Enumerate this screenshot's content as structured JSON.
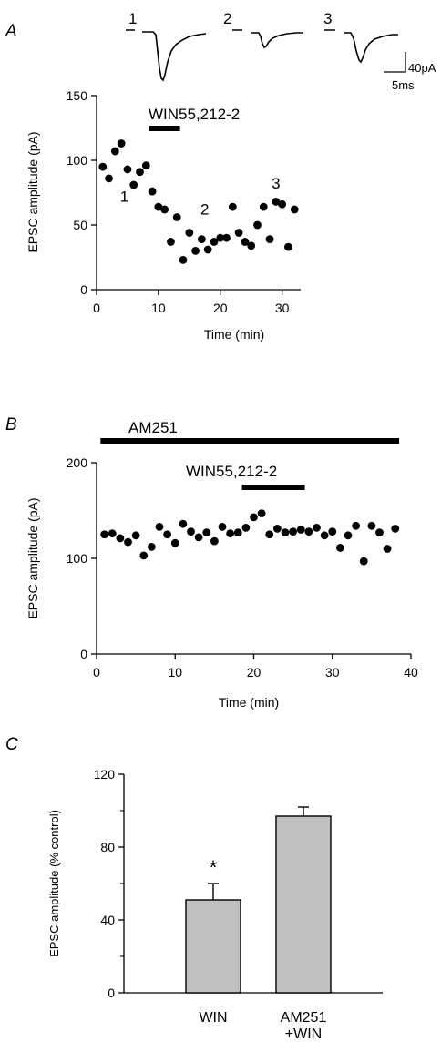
{
  "panels": {
    "a": {
      "label": "A"
    },
    "b": {
      "label": "B"
    },
    "c": {
      "label": "C"
    }
  },
  "traces": {
    "labels": [
      "1",
      "2",
      "3"
    ],
    "scale_y": "40pA",
    "scale_x": "5ms"
  },
  "chart_data": [
    {
      "type": "scatter",
      "panel": "A",
      "xlabel": "Time (min)",
      "ylabel": "EPSC amplitude (pA)",
      "xlim": [
        0,
        33
      ],
      "ylim": [
        0,
        150
      ],
      "xticks": [
        0,
        10,
        20,
        30
      ],
      "yticks": [
        0,
        50,
        100,
        150
      ],
      "drug_bars": [
        {
          "label": "WIN55,212-2",
          "start": 8.5,
          "end": 13.5
        }
      ],
      "annotations": [
        {
          "text": "1",
          "x": 4.5,
          "y": 68
        },
        {
          "text": "2",
          "x": 17.5,
          "y": 58
        },
        {
          "text": "3",
          "x": 29,
          "y": 78
        }
      ],
      "x": [
        1,
        2,
        3,
        4,
        5,
        6,
        7,
        8,
        9,
        10,
        11,
        12,
        13,
        14,
        15,
        16,
        17,
        18,
        19,
        20,
        21,
        22,
        23,
        24,
        25,
        26,
        27,
        28,
        29,
        30,
        31,
        32
      ],
      "values": [
        95,
        86,
        107,
        113,
        93,
        81,
        91,
        96,
        76,
        64,
        62,
        37,
        56,
        23,
        44,
        30,
        39,
        31,
        37,
        40,
        40,
        64,
        44,
        37,
        34,
        50,
        64,
        39,
        68,
        66,
        33,
        62
      ]
    },
    {
      "type": "scatter",
      "panel": "B",
      "xlabel": "Time (min)",
      "ylabel": "EPSC amplitude (pA)",
      "xlim": [
        0,
        40
      ],
      "ylim": [
        0,
        200
      ],
      "xticks": [
        0,
        10,
        20,
        30,
        40
      ],
      "yticks": [
        0,
        100,
        200
      ],
      "drug_bars": [
        {
          "label": "AM251",
          "start": 0.5,
          "end": 38.5
        },
        {
          "label": "WIN55,212-2",
          "start": 18.5,
          "end": 26.5
        }
      ],
      "x": [
        1,
        2,
        3,
        4,
        5,
        6,
        7,
        8,
        9,
        10,
        11,
        12,
        13,
        14,
        15,
        16,
        17,
        18,
        19,
        20,
        21,
        22,
        23,
        24,
        25,
        26,
        27,
        28,
        29,
        30,
        31,
        32,
        33,
        34,
        35,
        36,
        37,
        38
      ],
      "values": [
        125,
        126,
        121,
        117,
        124,
        103,
        112,
        133,
        125,
        116,
        136,
        128,
        122,
        127,
        118,
        133,
        126,
        127,
        132,
        143,
        147,
        125,
        131,
        127,
        128,
        130,
        128,
        132,
        124,
        128,
        111,
        124,
        134,
        97,
        134,
        127,
        110,
        131
      ]
    },
    {
      "type": "bar",
      "panel": "C",
      "ylabel": "EPSC amplitude (% control)",
      "ylim": [
        0,
        120
      ],
      "yticks": [
        0,
        40,
        80,
        120
      ],
      "categories": [
        "WIN",
        "AM251\n+WIN"
      ],
      "values": [
        51,
        97
      ],
      "errors": [
        9,
        5
      ],
      "significance": [
        "*",
        ""
      ],
      "bar_color": "#c0c0c0"
    }
  ]
}
